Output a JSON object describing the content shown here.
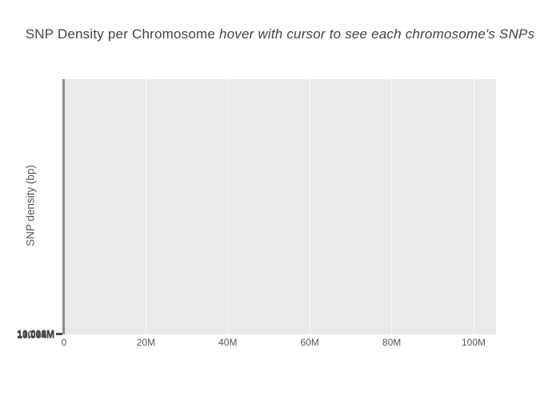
{
  "title": {
    "main": "SNP Density per Chromosome ",
    "note": "hover with cursor to see each chromosome's SNPs"
  },
  "colors": {
    "paper_bg": "#ffffff",
    "plot_bg": "#e9e9e9",
    "gridline_color": "#f6f6f6",
    "axis_line_color": "#8c8c8c",
    "tick_label_color": "#565656",
    "y_tick_color": "#4a4a4a",
    "title_color": "#444444"
  },
  "chart_data": {
    "type": "bar",
    "title": "SNP Density per Chromosome hover with cursor to see each chromosome's SNPs",
    "xlabel": "",
    "ylabel": "SNP density (bp)",
    "x_tick_labels": [
      "0",
      "20M",
      "40M",
      "60M",
      "80M",
      "100M"
    ],
    "x_tick_values_bp": [
      0,
      20000000,
      40000000,
      60000000,
      80000000,
      100000000
    ],
    "x_range_bp": [
      0,
      105500000
    ],
    "y_tick_labels_overlapped": [
      "10M",
      "10.002M",
      "10.004M",
      "10.006M",
      "10.008M",
      "10.01M"
    ],
    "bars": [
      {
        "x_bp": 0,
        "full_height": true
      }
    ],
    "grid": "vertical-major-only",
    "legend": "none"
  }
}
